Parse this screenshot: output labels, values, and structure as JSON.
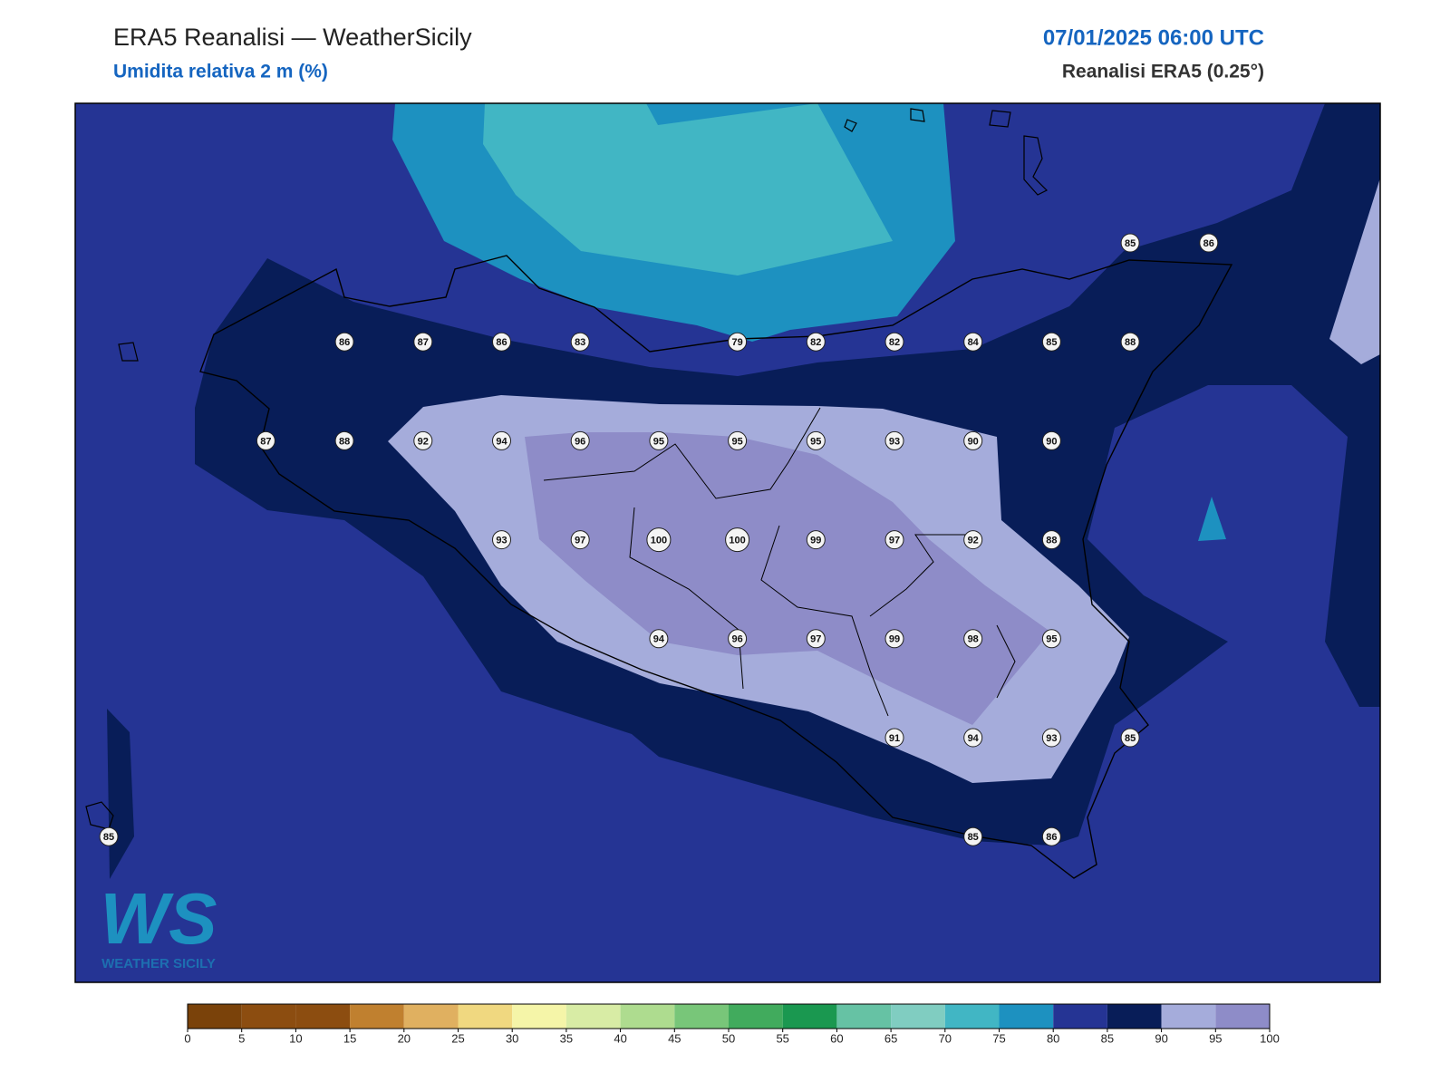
{
  "header": {
    "title": "ERA5 Reanalisi — WeatherSicily",
    "subtitle": "Umidita relativa 2 m (%)",
    "datetime": "07/01/2025 06:00 UTC",
    "source": "Reanalisi ERA5 (0.25°)"
  },
  "station_values": [
    [
      85,
      86
    ],
    [
      86,
      87,
      86,
      83,
      79,
      82,
      82,
      84,
      85,
      88
    ],
    [
      87,
      88,
      92,
      94,
      96,
      95,
      95,
      95,
      93,
      90,
      90
    ],
    [
      93,
      97,
      100,
      100,
      99,
      97,
      92,
      88
    ],
    [
      94,
      96,
      97,
      99,
      98,
      95
    ],
    [
      91,
      94,
      93,
      85
    ],
    [
      85,
      85,
      86
    ]
  ],
  "colorbar": {
    "ticks": [
      0,
      5,
      10,
      15,
      20,
      25,
      30,
      35,
      40,
      45,
      50,
      55,
      60,
      65,
      70,
      75,
      80,
      85,
      90,
      95,
      100
    ],
    "colors": [
      "#7a420a",
      "#8c4d10",
      "#8c4d10",
      "#c0802f",
      "#e0b060",
      "#f0d880",
      "#f5f5a8",
      "#d8eca5",
      "#aedc8f",
      "#78c679",
      "#41ab5d",
      "#1a9850",
      "#66c2a4",
      "#80cdc1",
      "#41b6c4",
      "#1d91c0",
      "#253494",
      "#081d58",
      "#a5acdb",
      "#8e8cc8"
    ]
  },
  "logo": {
    "mark": "WS",
    "text": "WEATHER SICILY"
  }
}
